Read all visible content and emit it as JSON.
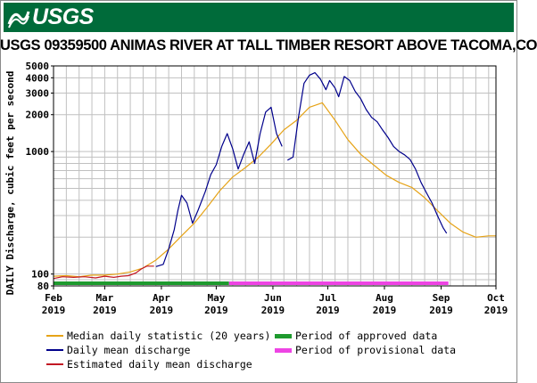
{
  "header": {
    "logo_text": "USGS",
    "logo_icon": "usgs-wave-icon"
  },
  "colors": {
    "header_bg": "#006b3a",
    "median": "#e6a317",
    "mean": "#00008b",
    "estimated": "#c21824",
    "approved": "#1e9a2e",
    "provisional": "#ee44e4",
    "grid": "#c0c0c0"
  },
  "chart_data": {
    "type": "line",
    "title": "USGS 09359500 ANIMAS RIVER AT TALL TIMBER RESORT ABOVE TACOMA,CO",
    "ylabel": "DAILY Discharge, cubic feet per second",
    "xlabel": "",
    "yscale": "log",
    "ylim": [
      80,
      5000
    ],
    "yticks": [
      "80",
      "100",
      "1000",
      "2000",
      "3000",
      "4000",
      "5000"
    ],
    "grid": true,
    "x_ticks": [
      {
        "month": "Feb",
        "year": "2019"
      },
      {
        "month": "Mar",
        "year": "2019"
      },
      {
        "month": "Apr",
        "year": "2019"
      },
      {
        "month": "May",
        "year": "2019"
      },
      {
        "month": "Jun",
        "year": "2019"
      },
      {
        "month": "Jul",
        "year": "2019"
      },
      {
        "month": "Aug",
        "year": "2019"
      },
      {
        "month": "Sep",
        "year": "2019"
      },
      {
        "month": "Oct",
        "year": "2019"
      }
    ],
    "x_range": [
      "2019-02-01",
      "2019-10-01"
    ],
    "series": [
      {
        "name": "Median daily statistic (20 years)",
        "points": [
          [
            "2019-02-01",
            96
          ],
          [
            "2019-02-08",
            97
          ],
          [
            "2019-02-15",
            95
          ],
          [
            "2019-02-22",
            98
          ],
          [
            "2019-03-01",
            98
          ],
          [
            "2019-03-08",
            100
          ],
          [
            "2019-03-15",
            104
          ],
          [
            "2019-03-22",
            112
          ],
          [
            "2019-03-29",
            130
          ],
          [
            "2019-04-05",
            160
          ],
          [
            "2019-04-12",
            205
          ],
          [
            "2019-04-19",
            260
          ],
          [
            "2019-04-26",
            350
          ],
          [
            "2019-05-03",
            480
          ],
          [
            "2019-05-10",
            620
          ],
          [
            "2019-05-17",
            740
          ],
          [
            "2019-05-24",
            900
          ],
          [
            "2019-05-31",
            1150
          ],
          [
            "2019-06-07",
            1500
          ],
          [
            "2019-06-14",
            1800
          ],
          [
            "2019-06-21",
            2300
          ],
          [
            "2019-06-28",
            2500
          ],
          [
            "2019-07-05",
            1800
          ],
          [
            "2019-07-12",
            1250
          ],
          [
            "2019-07-19",
            950
          ],
          [
            "2019-07-26",
            780
          ],
          [
            "2019-08-02",
            640
          ],
          [
            "2019-08-09",
            560
          ],
          [
            "2019-08-16",
            510
          ],
          [
            "2019-08-23",
            420
          ],
          [
            "2019-08-30",
            330
          ],
          [
            "2019-09-06",
            260
          ],
          [
            "2019-09-13",
            220
          ],
          [
            "2019-09-20",
            200
          ],
          [
            "2019-09-27",
            205
          ],
          [
            "2019-10-01",
            205
          ]
        ]
      },
      {
        "name": "Daily mean discharge",
        "segments": [
          [
            [
              "2019-03-29",
              115
            ],
            [
              "2019-04-02",
              120
            ],
            [
              "2019-04-05",
              160
            ],
            [
              "2019-04-08",
              230
            ],
            [
              "2019-04-10",
              330
            ],
            [
              "2019-04-12",
              440
            ],
            [
              "2019-04-15",
              380
            ],
            [
              "2019-04-18",
              260
            ],
            [
              "2019-04-21",
              330
            ],
            [
              "2019-04-25",
              470
            ],
            [
              "2019-04-28",
              650
            ],
            [
              "2019-05-01",
              780
            ],
            [
              "2019-05-04",
              1100
            ],
            [
              "2019-05-07",
              1400
            ],
            [
              "2019-05-10",
              1050
            ],
            [
              "2019-05-13",
              720
            ],
            [
              "2019-05-16",
              950
            ],
            [
              "2019-05-19",
              1200
            ],
            [
              "2019-05-22",
              800
            ],
            [
              "2019-05-25",
              1400
            ],
            [
              "2019-05-28",
              2100
            ],
            [
              "2019-05-31",
              2300
            ],
            [
              "2019-06-03",
              1400
            ],
            [
              "2019-06-06",
              1100
            ]
          ],
          [
            [
              "2019-06-09",
              850
            ],
            [
              "2019-06-12",
              900
            ],
            [
              "2019-06-15",
              1900
            ],
            [
              "2019-06-18",
              3600
            ],
            [
              "2019-06-21",
              4200
            ],
            [
              "2019-06-24",
              4400
            ],
            [
              "2019-06-27",
              3900
            ],
            [
              "2019-06-30",
              3200
            ],
            [
              "2019-07-02",
              3800
            ],
            [
              "2019-07-05",
              3300
            ],
            [
              "2019-07-07",
              2800
            ],
            [
              "2019-07-10",
              4100
            ],
            [
              "2019-07-13",
              3800
            ],
            [
              "2019-07-16",
              3100
            ],
            [
              "2019-07-19",
              2700
            ],
            [
              "2019-07-22",
              2200
            ],
            [
              "2019-07-25",
              1900
            ],
            [
              "2019-07-28",
              1750
            ],
            [
              "2019-07-31",
              1500
            ],
            [
              "2019-08-03",
              1300
            ],
            [
              "2019-08-06",
              1100
            ],
            [
              "2019-08-09",
              1000
            ],
            [
              "2019-08-12",
              940
            ],
            [
              "2019-08-15",
              860
            ],
            [
              "2019-08-18",
              720
            ],
            [
              "2019-08-21",
              560
            ],
            [
              "2019-08-24",
              460
            ],
            [
              "2019-08-27",
              380
            ],
            [
              "2019-08-30",
              300
            ],
            [
              "2019-09-02",
              240
            ],
            [
              "2019-09-04",
              215
            ]
          ]
        ]
      },
      {
        "name": "Estimated daily mean discharge",
        "points": [
          [
            "2019-02-01",
            92
          ],
          [
            "2019-02-06",
            95
          ],
          [
            "2019-02-12",
            94
          ],
          [
            "2019-02-18",
            95
          ],
          [
            "2019-02-24",
            93
          ],
          [
            "2019-03-01",
            96
          ],
          [
            "2019-03-06",
            94
          ],
          [
            "2019-03-10",
            96
          ],
          [
            "2019-03-14",
            97
          ],
          [
            "2019-03-18",
            102
          ],
          [
            "2019-03-21",
            110
          ],
          [
            "2019-03-24",
            116
          ],
          [
            "2019-03-28",
            116
          ]
        ]
      }
    ],
    "period_bars": [
      {
        "name": "Period of approved data",
        "start": "2019-02-01",
        "end": "2019-05-08"
      },
      {
        "name": "Period of provisional data",
        "start": "2019-05-08",
        "end": "2019-09-05"
      }
    ],
    "legend": {
      "position": "bottom",
      "items": [
        {
          "label": "Median daily statistic (20 years)",
          "kind": "line",
          "color_key": "median"
        },
        {
          "label": "Period of approved data",
          "kind": "bar",
          "color_key": "approved"
        },
        {
          "label": "Daily mean discharge",
          "kind": "line",
          "color_key": "mean"
        },
        {
          "label": "Period of provisional data",
          "kind": "bar",
          "color_key": "provisional"
        },
        {
          "label": "Estimated daily mean discharge",
          "kind": "line",
          "color_key": "estimated"
        }
      ]
    }
  }
}
